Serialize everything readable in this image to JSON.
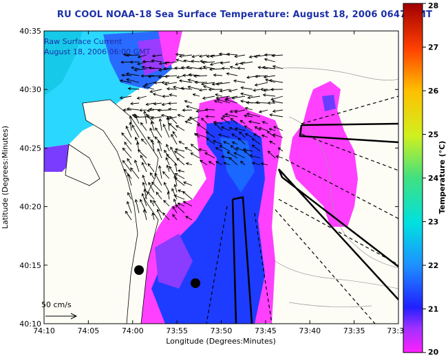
{
  "title": "RU COOL  NOAA-18  Sea Surface Temperature:  August 18, 2006 0647 GMT",
  "legend": {
    "line1": "Raw Surface Current",
    "line2": "August 18, 2006 06:00 GMT"
  },
  "scale_label": "50 cm/s",
  "axes": {
    "xlabel": "Longitude (Degrees:Minutes)",
    "ylabel": "Latitude (Degrees:Minutes)",
    "x_ticks": [
      "74:10",
      "74:05",
      "74:00",
      "73:55",
      "73:50",
      "73:45",
      "73:40",
      "73:35",
      "73:3"
    ],
    "y_ticks": [
      "40:35",
      "40:30",
      "40:25",
      "40:20",
      "40:15",
      "40:10"
    ]
  },
  "colorbar": {
    "label": "Temperature (°C)",
    "ticks": [
      "28",
      "27",
      "26",
      "25",
      "24",
      "23",
      "22",
      "21",
      "20"
    ],
    "min": 20,
    "max": 28
  },
  "colors": {
    "title": "#1a2fa8",
    "land": "#fdfdf6",
    "cold": "#ff40ff",
    "warm": "#19d0ff"
  }
}
